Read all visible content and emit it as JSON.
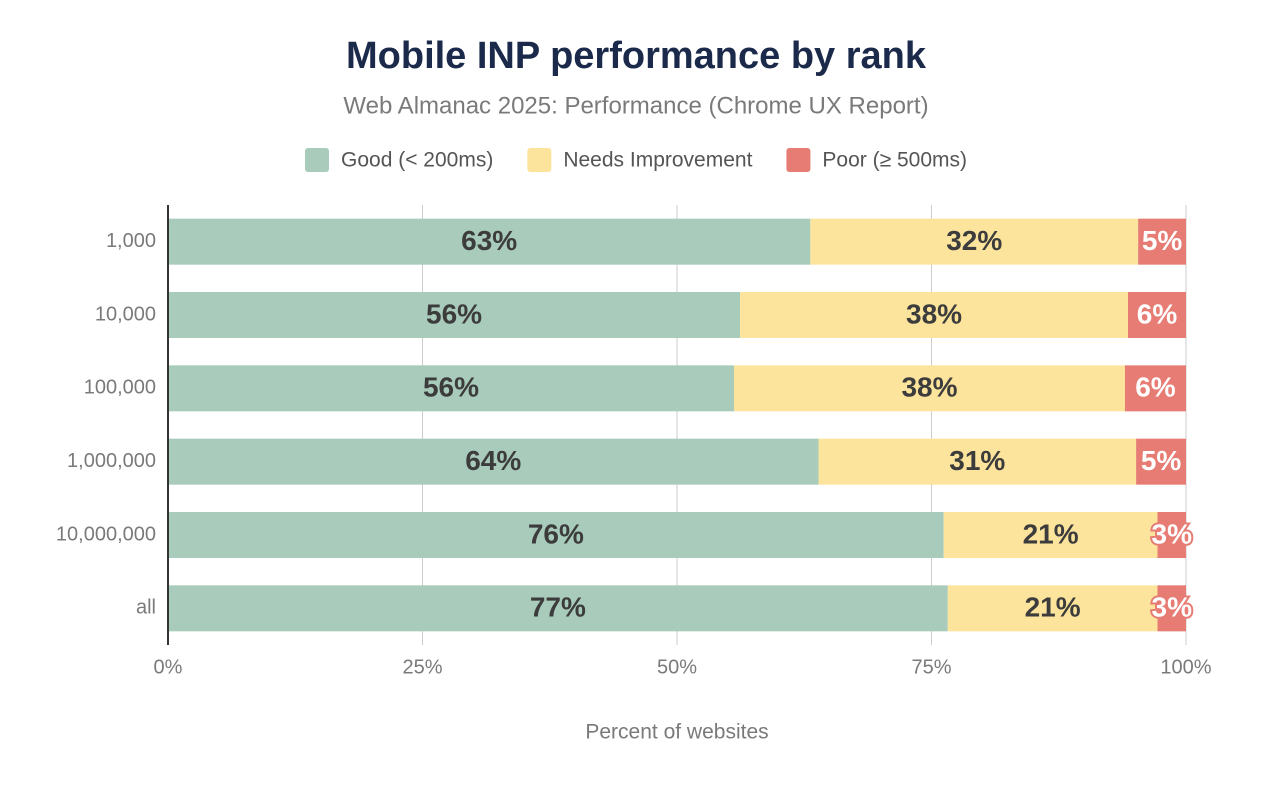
{
  "chart_data": {
    "type": "stacked-bar-horizontal",
    "title": "Mobile INP performance by rank",
    "subtitle": "Web Almanac 2025: Performance (Chrome UX Report)",
    "x_label": "Percent of websites",
    "categories": [
      "1,000",
      "10,000",
      "100,000",
      "1,000,000",
      "10,000,000",
      "all"
    ],
    "series": [
      {
        "name": "Good (< 200ms)",
        "color": "#a8cbbb",
        "values": [
          63.1,
          56.2,
          55.6,
          63.9,
          76.2,
          76.6
        ],
        "value_labels": [
          "63%",
          "56%",
          "56%",
          "64%",
          "76%",
          "77%"
        ]
      },
      {
        "name": "Needs Improvement",
        "color": "#fde49c",
        "values": [
          32.2,
          38.1,
          38.4,
          31.2,
          21.0,
          20.6
        ],
        "value_labels": [
          "32%",
          "38%",
          "38%",
          "31%",
          "21%",
          "21%"
        ]
      },
      {
        "name": "Poor (≥ 500ms)",
        "color": "#e67c73",
        "values": [
          4.7,
          5.7,
          6.0,
          4.9,
          2.8,
          2.8
        ],
        "value_labels": [
          "5%",
          "6%",
          "6%",
          "5%",
          "3%",
          "3%"
        ]
      }
    ],
    "xlim": [
      0,
      100
    ],
    "xticks": [
      {
        "value": 0,
        "label": "0%"
      },
      {
        "value": 25,
        "label": "25%"
      },
      {
        "value": 50,
        "label": "50%"
      },
      {
        "value": 75,
        "label": "75%"
      },
      {
        "value": 100,
        "label": "100%"
      }
    ],
    "grid": true,
    "legend": "top"
  }
}
